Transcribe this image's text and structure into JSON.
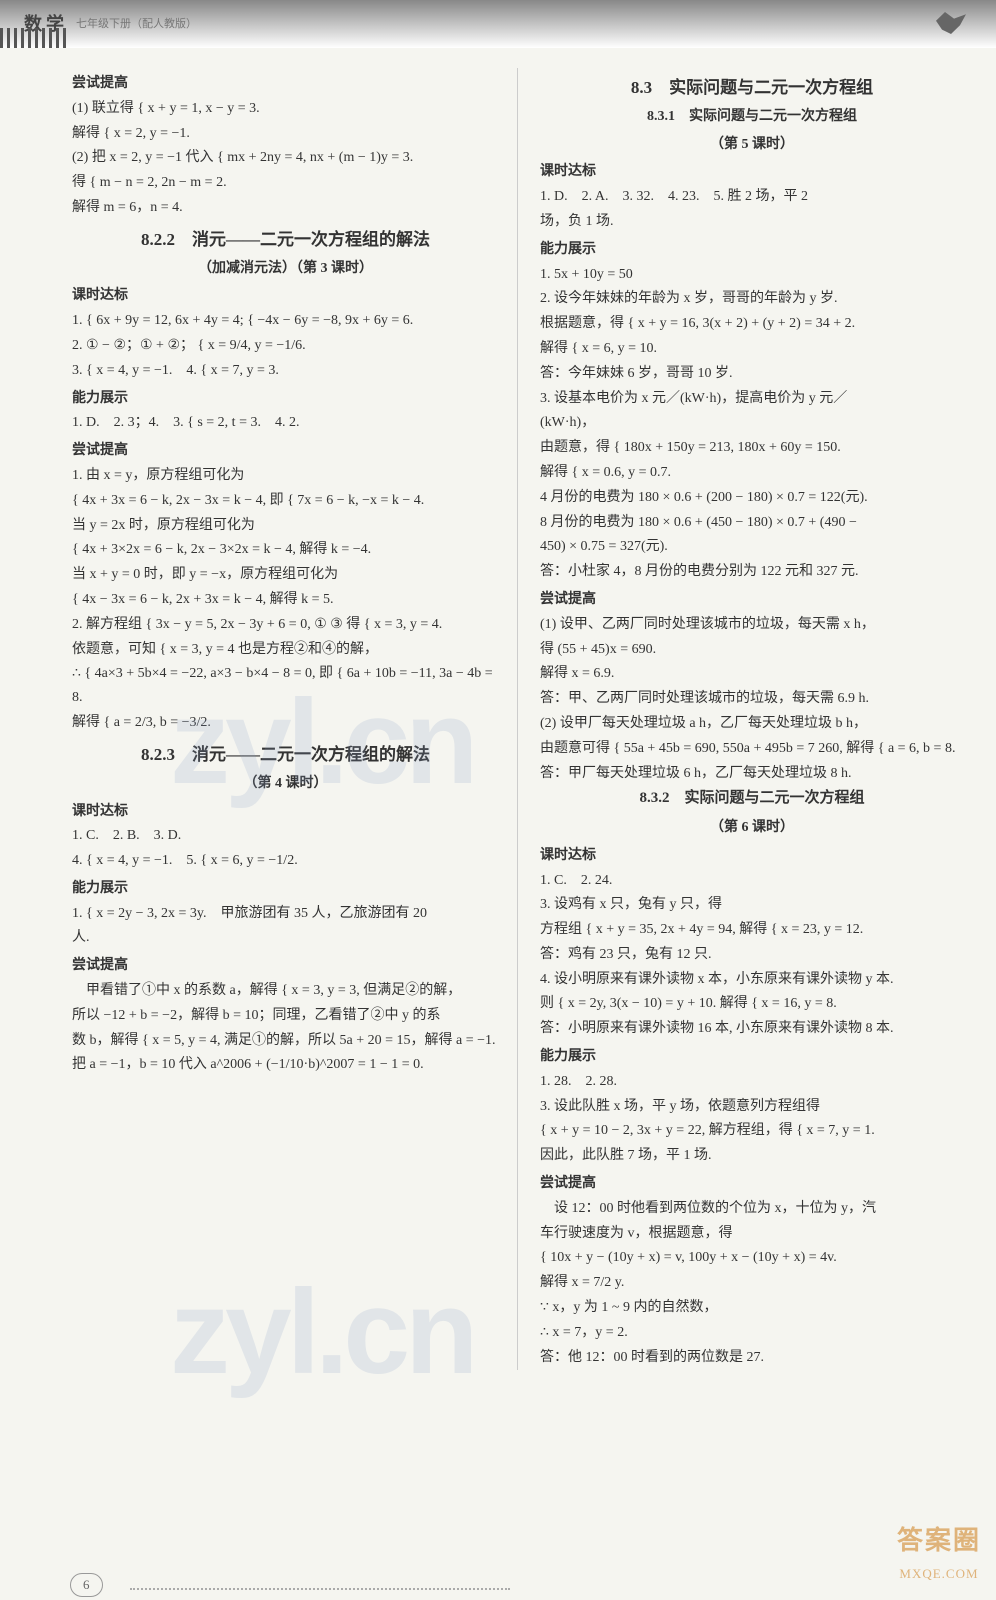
{
  "header": {
    "subject": "数学",
    "grade": "七年级下册（配人教版）"
  },
  "watermark_text": "zyl.cn",
  "left": {
    "sec_label_a": "尝试提高",
    "l1": "(1) 联立得 { x + y = 1,  x − y = 3.",
    "l2": "解得 { x = 2,  y = −1.",
    "l3": "(2) 把 x = 2, y = −1 代入 { mx + 2ny = 4,  nx + (m − 1)y = 3.",
    "l4": "得 { m − n = 2,  2n − m = 2.",
    "l5": "解得 m = 6，n = 4.",
    "title822": "8.2.2　消元——二元一次方程组的解法",
    "title822b": "（加减消元法）（第 3 课时）",
    "sec_label_b": "课时达标",
    "l6": "1. { 6x + 9y = 12,  6x + 4y = 4;  { −4x − 6y = −8,  9x + 6y = 6.",
    "l7": "2. ① − ②；① + ②； { x = 9/4,  y = −1/6.",
    "l8": "3. { x = 4,  y = −1.　4. { x = 7,  y = 3.",
    "sec_label_c": "能力展示",
    "l9": "1. D.　2. 3；4.　3. { s = 2,  t = 3.　4. 2.",
    "sec_label_d": "尝试提高",
    "l10": "1. 由 x = y，原方程组可化为",
    "l11": "{ 4x + 3x = 6 − k,  2x − 3x = k − 4,  即 { 7x = 6 − k,  −x = k − 4.",
    "l12": "当 y = 2x 时，原方程组可化为",
    "l13": "{ 4x + 3×2x = 6 − k,  2x − 3×2x = k − 4,  解得 k = −4.",
    "l14": "当 x + y = 0 时，即 y = −x，原方程组可化为",
    "l15": "{ 4x − 3x = 6 − k,  2x + 3x = k − 4,  解得 k = 5.",
    "l16": "2. 解方程组 { 3x − y = 5,  2x − 3y + 6 = 0, ① ③ 得 { x = 3,  y = 4.",
    "l17": "依题意，可知 { x = 3, y = 4 也是方程②和④的解，",
    "l18": "∴ { 4a×3 + 5b×4 = −22,  a×3 − b×4 − 8 = 0,  即 { 6a + 10b = −11,  3a − 4b = 8.",
    "l19": "解得 { a = 2/3,  b = −3/2.",
    "title823": "8.2.3　消元——二元一次方程组的解法",
    "title823b": "（第 4 课时）",
    "sec_label_e": "课时达标",
    "l20": "1. C.　2. B.　3. D.",
    "l21": "4. { x = 4,  y = −1.　5. { x = 6,  y = −1/2.",
    "sec_label_f": "能力展示",
    "l22": "1. { x = 2y − 3,  2x = 3y.　甲旅游团有 35 人，乙旅游团有 20",
    "l23": "人.",
    "sec_label_g": "尝试提高",
    "l24": "甲看错了①中 x 的系数 a，解得 { x = 3, y = 3, 但满足②的解，",
    "l25": "所以 −12 + b = −2，解得 b = 10；同理，乙看错了②中 y 的系",
    "l26": "数 b，解得 { x = 5, y = 4, 满足①的解，所以 5a + 20 = 15，解得 a = −1.",
    "l27": "把 a = −1，b = 10 代入 a^2006 + (−1/10·b)^2007 = 1 − 1 = 0."
  },
  "right": {
    "title83": "8.3　实际问题与二元一次方程组",
    "title831": "8.3.1　实际问题与二元一次方程组",
    "title831b": "（第 5 课时）",
    "sec_label_a": "课时达标",
    "r1": "1. D.　2. A.　3. 32.　4. 23.　5. 胜 2 场，平 2",
    "r2": "场，负 1 场.",
    "sec_label_b": "能力展示",
    "r3": "1. 5x + 10y = 50",
    "r4": "2. 设今年妹妹的年龄为 x 岁，哥哥的年龄为 y 岁.",
    "r5": "根据题意，得 { x + y = 16,  3(x + 2) + (y + 2) = 34 + 2.",
    "r6": "解得 { x = 6,  y = 10.",
    "r7": "答：今年妹妹 6 岁，哥哥 10 岁.",
    "r8": "3. 设基本电价为 x 元／(kW·h)，提高电价为 y 元／",
    "r9": "(kW·h)，",
    "r10": "由题意，得 { 180x + 150y = 213,  180x + 60y = 150.",
    "r11": "解得 { x = 0.6,  y = 0.7.",
    "r12": "4 月份的电费为 180 × 0.6 + (200 − 180) × 0.7 = 122(元).",
    "r13": "8 月份的电费为 180 × 0.6 + (450 − 180) × 0.7 + (490 −",
    "r14": "450) × 0.75 = 327(元).",
    "r15": "答：小杜家 4，8 月份的电费分别为 122 元和 327 元.",
    "sec_label_c": "尝试提高",
    "r16": "(1) 设甲、乙两厂同时处理该城市的垃圾，每天需 x h，",
    "r17": "得 (55 + 45)x = 690.",
    "r18": "解得 x = 6.9.",
    "r19": "答：甲、乙两厂同时处理该城市的垃圾，每天需 6.9 h.",
    "r20": "(2) 设甲厂每天处理垃圾 a h，乙厂每天处理垃圾 b h，",
    "r21": "由题意可得 { 55a + 45b = 690,  550a + 495b = 7 260,  解得 { a = 6,  b = 8.",
    "r22": "答：甲厂每天处理垃圾 6 h，乙厂每天处理垃圾 8 h.",
    "title832": "8.3.2　实际问题与二元一次方程组",
    "title832b": "（第 6 课时）",
    "sec_label_d": "课时达标",
    "r23": "1. C.　2. 24.",
    "r24": "3. 设鸡有 x 只，兔有 y 只，得",
    "r25": "方程组 { x + y = 35,  2x + 4y = 94, 解得 { x = 23,  y = 12.",
    "r26": "答：鸡有 23 只，兔有 12 只.",
    "r27": "4. 设小明原来有课外读物 x 本，小东原来有课外读物 y 本.",
    "r28": "则 { x = 2y,  3(x − 10) = y + 10. 解得 { x = 16,  y = 8.",
    "r29": "答：小明原来有课外读物 16 本, 小东原来有课外读物 8 本.",
    "sec_label_e": "能力展示",
    "r30": "1. 28.　2. 28.",
    "r31": "3. 设此队胜 x 场，平 y 场，依题意列方程组得",
    "r32": "{ x + y = 10 − 2,  3x + y = 22, 解方程组，得 { x = 7,  y = 1.",
    "r33": "因此，此队胜 7 场，平 1 场.",
    "sec_label_f": "尝试提高",
    "r34": "设 12：00 时他看到两位数的个位为 x，十位为 y，汽",
    "r35": "车行驶速度为 v，根据题意，得",
    "r36": "{ 10x + y − (10y + x) = v,  100y + x − (10y + x) = 4v.",
    "r37": "解得 x = 7/2 y.",
    "r38": "∵ x，y 为 1 ~ 9 内的自然数，",
    "r39": "∴ x = 7，y = 2.",
    "r40": "答：他 12：00 时看到的两位数是 27."
  },
  "footer": {
    "page_number": "6",
    "logo_text": "答案圈",
    "logo_url": "MXQE.COM"
  }
}
